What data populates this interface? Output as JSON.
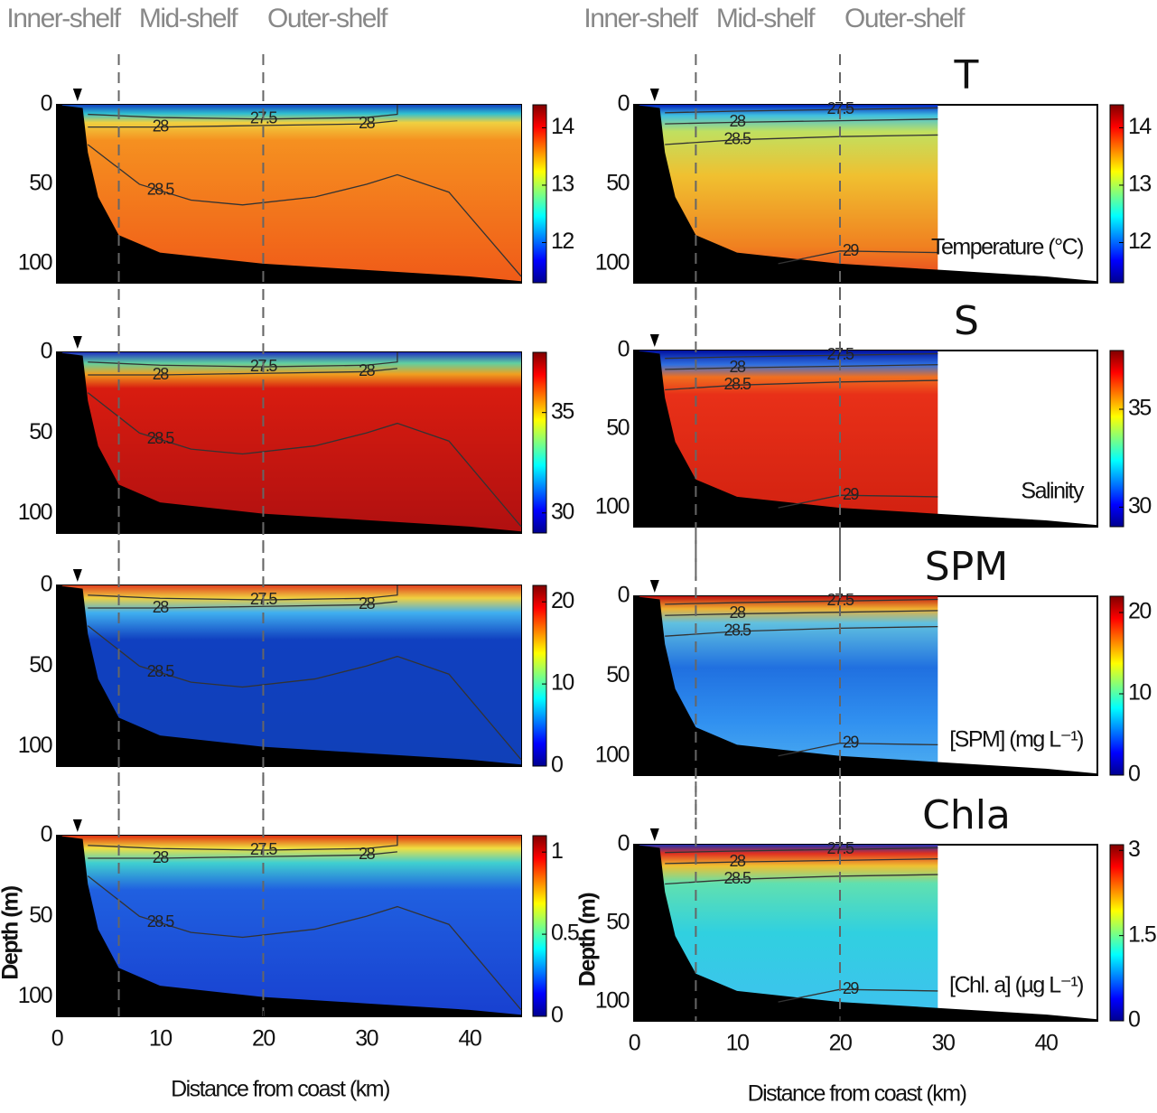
{
  "chart_data": [
    {
      "type": "contour",
      "zones": [
        "Inner-shelf",
        "Mid-shelf",
        "Outer-shelf"
      ],
      "xlim": [
        0,
        45
      ],
      "ylim": [
        0,
        112
      ],
      "yticks": [
        0,
        50,
        100
      ],
      "zone_boundaries": [
        6,
        20
      ],
      "station": 2,
      "cbar_lim": [
        11.3,
        14.4
      ],
      "cbar_ticks": [
        12,
        13,
        14
      ],
      "isopycnals": [
        27.5,
        28,
        28.5
      ]
    },
    {
      "type": "contour",
      "zones": [
        "Inner-shelf",
        "Mid-shelf",
        "Outer-shelf"
      ],
      "title": "T",
      "variable": "Temperature (°C)",
      "xlim": [
        0,
        45
      ],
      "ylim": [
        0,
        112
      ],
      "yticks": [
        0,
        50,
        100
      ],
      "zone_boundaries": [
        6,
        20
      ],
      "station": 2,
      "cbar_lim": [
        11.3,
        14.4
      ],
      "cbar_ticks": [
        12,
        13,
        14
      ],
      "isopycnals": [
        27.5,
        28,
        28.5,
        29
      ]
    },
    {
      "type": "contour",
      "xlim": [
        0,
        45
      ],
      "ylim": [
        0,
        112
      ],
      "yticks": [
        0,
        50,
        100
      ],
      "zone_boundaries": [
        6,
        20
      ],
      "station": 2,
      "cbar_lim": [
        29,
        38
      ],
      "cbar_ticks": [
        30,
        35
      ],
      "isopycnals": [
        27.5,
        28,
        28.5
      ]
    },
    {
      "type": "contour",
      "title": "S",
      "variable": "Salinity",
      "xlim": [
        0,
        45
      ],
      "ylim": [
        0,
        112
      ],
      "yticks": [
        0,
        50,
        100
      ],
      "zone_boundaries": [
        6,
        20
      ],
      "station": 2,
      "cbar_lim": [
        29,
        38
      ],
      "cbar_ticks": [
        30,
        35
      ],
      "isopycnals": [
        27.5,
        28,
        28.5,
        29
      ]
    },
    {
      "type": "contour",
      "xlim": [
        0,
        45
      ],
      "ylim": [
        0,
        112
      ],
      "yticks": [
        0,
        50,
        100
      ],
      "zone_boundaries": [
        6,
        20
      ],
      "station": 2,
      "cbar_lim": [
        0,
        22
      ],
      "cbar_ticks": [
        0,
        10,
        20
      ],
      "isopycnals": [
        27.5,
        28,
        28.5
      ]
    },
    {
      "type": "contour",
      "title": "SPM",
      "variable": "[SPM] (mg L⁻¹)",
      "xlim": [
        0,
        45
      ],
      "ylim": [
        0,
        112
      ],
      "yticks": [
        0,
        50,
        100
      ],
      "zone_boundaries": [
        6,
        20
      ],
      "station": 2,
      "cbar_lim": [
        0,
        22
      ],
      "cbar_ticks": [
        0,
        10,
        20
      ],
      "isopycnals": [
        27.5,
        28,
        28.5,
        29
      ]
    },
    {
      "type": "contour",
      "xlabel": "Distance from coast (km)",
      "ylabel": "Depth (m)",
      "xlim": [
        0,
        45
      ],
      "xticks": [
        0,
        10,
        20,
        30,
        40
      ],
      "ylim": [
        0,
        112
      ],
      "yticks": [
        0,
        50,
        100
      ],
      "zone_boundaries": [
        6,
        20
      ],
      "station": 2,
      "cbar_lim": [
        0,
        1.1
      ],
      "cbar_ticks": [
        0,
        0.5,
        1
      ],
      "isopycnals": [
        27.5,
        28,
        28.5
      ]
    },
    {
      "type": "contour",
      "title": "Chla",
      "variable": "[Chl. a] (µg L⁻¹)",
      "xlabel": "Distance from coast (km)",
      "ylabel": "Depth (m)",
      "xlim": [
        0,
        45
      ],
      "xticks": [
        0,
        10,
        20,
        30,
        40
      ],
      "ylim": [
        0,
        112
      ],
      "yticks": [
        0,
        50,
        100
      ],
      "zone_boundaries": [
        6,
        20
      ],
      "station": 2,
      "cbar_lim": [
        0,
        3.1
      ],
      "cbar_ticks": [
        0,
        1.5,
        3
      ],
      "isopycnals": [
        27.5,
        28,
        28.5,
        29
      ]
    }
  ]
}
